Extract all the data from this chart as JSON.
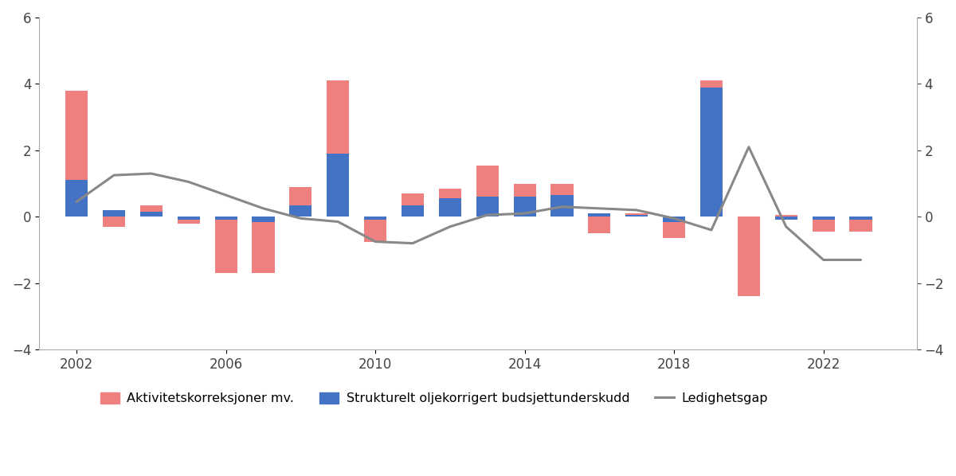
{
  "years": [
    2002,
    2003,
    2004,
    2005,
    2006,
    2007,
    2008,
    2009,
    2010,
    2011,
    2012,
    2013,
    2014,
    2015,
    2016,
    2017,
    2018,
    2019,
    2020,
    2021,
    2022,
    2023
  ],
  "aktivitet": [
    2.7,
    -0.3,
    0.2,
    -0.1,
    -1.6,
    -1.55,
    0.55,
    2.2,
    -0.65,
    0.35,
    0.3,
    0.95,
    0.4,
    0.35,
    -0.5,
    0.05,
    -0.5,
    0.2,
    -2.4,
    0.05,
    -0.35,
    -0.35
  ],
  "strukturelt": [
    1.1,
    0.2,
    0.15,
    -0.1,
    -0.1,
    -0.15,
    0.35,
    1.9,
    -0.1,
    0.35,
    0.55,
    0.6,
    0.6,
    0.65,
    0.1,
    0.05,
    -0.15,
    3.9,
    0.0,
    -0.1,
    -0.1,
    -0.1
  ],
  "ledighetsgap": [
    0.45,
    1.25,
    1.3,
    1.05,
    0.65,
    0.25,
    -0.05,
    -0.15,
    -0.75,
    -0.8,
    -0.3,
    0.05,
    0.1,
    0.3,
    0.25,
    0.2,
    -0.05,
    -0.4,
    2.1,
    -0.3,
    -1.3,
    -1.3
  ],
  "bar_width": 0.6,
  "color_aktivitet": "#f08080",
  "color_strukturelt": "#4472c4",
  "color_line": "#888888",
  "ylim": [
    -4,
    6
  ],
  "yticks": [
    -4,
    -2,
    0,
    2,
    4,
    6
  ],
  "xticks": [
    2002,
    2006,
    2010,
    2014,
    2018,
    2022
  ],
  "legend_label_aktivitet": "Aktivitetskorreksjoner mv.",
  "legend_label_strukturelt": "Strukturelt oljekorrigert budsjettunderskudd",
  "legend_label_line": "Ledighetsgap",
  "background_color": "#ffffff",
  "plot_bg_color": "#ffffff"
}
